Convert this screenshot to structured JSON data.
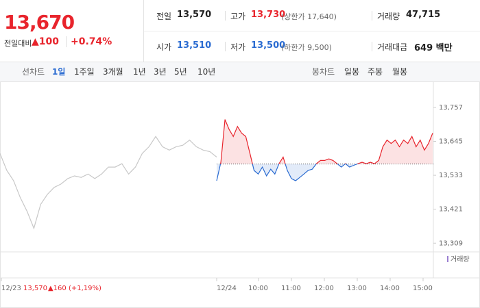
{
  "summary": {
    "price": "13,670",
    "change_label": "전일대비",
    "change": "▲100",
    "change_rate": "+0.74%"
  },
  "stats": [
    [
      {
        "label": "전일",
        "value": "13,570"
      },
      {
        "label": "고가",
        "value": "13,730",
        "note": "(상한가 17,640)"
      },
      {
        "label": "거래량",
        "value": "47,715"
      }
    ],
    [
      {
        "label": "시가",
        "value": "13,510"
      },
      {
        "label": "저가",
        "value": "13,500",
        "note": "(하한가 9,500)"
      },
      {
        "label": "거래대금",
        "value": "649 백만"
      }
    ]
  ],
  "tabs": {
    "line_label": "선차트",
    "line": [
      "1일",
      "1주일",
      "3개월",
      "1년",
      "3년",
      "5년",
      "10년"
    ],
    "candle_label": "봉차트",
    "candle": [
      "일봉",
      "주봉",
      "월봉"
    ]
  },
  "chart_data": {
    "type": "line",
    "ylim": [
      13287,
      13829
    ],
    "yticks": [
      {
        "value": 13309,
        "label": "13,309"
      },
      {
        "value": 13421,
        "label": "13,421"
      },
      {
        "value": 13533,
        "label": "13,533"
      },
      {
        "value": 13645,
        "label": "13,645"
      },
      {
        "value": 13757,
        "label": "13,757"
      }
    ],
    "baseline": 13570,
    "volume_label": "거래량",
    "x_labels": [
      "12/23",
      "12/24",
      "10:00",
      "11:00",
      "12:00",
      "13:00",
      "14:00",
      "15:00"
    ],
    "prev_summary": {
      "close": "13,570",
      "change": "▲160 (+1,19%)"
    },
    "series": [
      {
        "name": "12/23",
        "color": "#c8c8c8",
        "values": [
          13605,
          13549,
          13515,
          13459,
          13414,
          13358,
          13437,
          13470,
          13493,
          13504,
          13522,
          13531,
          13526,
          13537,
          13522,
          13537,
          13560,
          13560,
          13571,
          13537,
          13560,
          13605,
          13627,
          13661,
          13627,
          13616,
          13627,
          13632,
          13649,
          13627,
          13616,
          13611,
          13593
        ]
      },
      {
        "name": "12/24",
        "color": "#e8242c",
        "color_down": "#2a6bd1",
        "values": [
          13515,
          13576,
          13717,
          13684,
          13661,
          13694,
          13672,
          13661,
          13605,
          13549,
          13537,
          13560,
          13531,
          13553,
          13537,
          13571,
          13593,
          13549,
          13522,
          13515,
          13526,
          13537,
          13549,
          13553,
          13571,
          13582,
          13582,
          13587,
          13582,
          13571,
          13560,
          13571,
          13560,
          13566,
          13571,
          13576,
          13571,
          13576,
          13571,
          13582,
          13627,
          13649,
          13638,
          13649,
          13627,
          13649,
          13638,
          13661,
          13627,
          13649,
          13616,
          13638,
          13672
        ]
      }
    ]
  }
}
